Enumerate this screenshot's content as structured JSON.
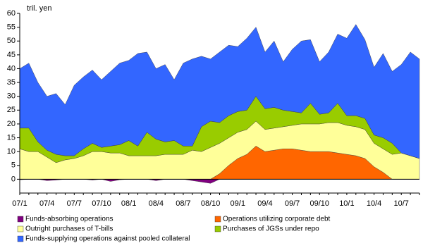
{
  "chart_data": {
    "type": "stacked_area",
    "y_unit_label": "tril. yen",
    "categories": [
      "07/1",
      null,
      null,
      "07/4",
      null,
      null,
      "07/7",
      null,
      null,
      "07/10",
      null,
      null,
      "08/1",
      null,
      null,
      "08/4",
      null,
      null,
      "08/7",
      null,
      null,
      "08/10",
      null,
      null,
      "09/1",
      null,
      null,
      "09/4",
      null,
      null,
      "09/7",
      null,
      null,
      "09/10",
      null,
      null,
      "10/1",
      null,
      null,
      "10/4",
      null,
      null,
      "10/7",
      null,
      null
    ],
    "series": [
      {
        "name": "Funds-absorbing operations",
        "color": "#800080",
        "values": [
          -0.2,
          0,
          0,
          -0.5,
          -0.3,
          0,
          0,
          0,
          -0.3,
          0,
          -0.8,
          -0.2,
          0,
          0,
          0,
          -0.5,
          0,
          0,
          0,
          -0.5,
          -1,
          -1.5,
          0,
          0,
          0,
          0,
          0,
          0,
          0,
          0,
          0,
          0,
          0,
          0,
          0,
          0,
          0,
          0,
          0,
          0,
          0,
          0,
          0,
          0,
          0
        ]
      },
      {
        "name": "Operations utilizing corporate debt",
        "color": "#ff6600",
        "values": [
          0,
          0,
          0,
          0,
          0,
          0,
          0,
          0,
          0,
          0,
          0,
          0,
          0,
          0,
          0,
          0,
          0,
          0,
          0,
          0,
          0,
          0,
          2,
          5,
          7.5,
          9,
          12,
          10,
          10.5,
          11,
          11,
          10.5,
          10,
          10,
          10,
          9.5,
          9,
          8.5,
          7.5,
          4.5,
          2.5,
          0,
          0,
          0,
          0
        ]
      },
      {
        "name": "Outright purchases of T-bills",
        "color": "#ffff99",
        "values": [
          11,
          10,
          10,
          8,
          6,
          7,
          7.5,
          8.5,
          10,
          10,
          9.5,
          9.5,
          8.5,
          8.5,
          8.5,
          8.5,
          9,
          9,
          9,
          10.5,
          10,
          11.5,
          11,
          10,
          9.5,
          9,
          9,
          8,
          8,
          8,
          8.5,
          9.5,
          10,
          10,
          10.5,
          11,
          10.5,
          10.5,
          10.5,
          8.5,
          8.5,
          9,
          9.5,
          8.5,
          7.5
        ]
      },
      {
        "name": "Purchases of JGSs under repo",
        "color": "#99cc00",
        "values": [
          7.5,
          8.5,
          3.5,
          2.5,
          3,
          1.5,
          1,
          2.5,
          3,
          1.5,
          2.5,
          3,
          5.5,
          3.5,
          8.5,
          6,
          4.5,
          5,
          3,
          1.5,
          9,
          9.5,
          7.5,
          8,
          7.5,
          7,
          9,
          7.5,
          7.5,
          6,
          5,
          4,
          7.5,
          3.5,
          3.5,
          7,
          3.5,
          4,
          4,
          3,
          4,
          4,
          0,
          0,
          0
        ]
      },
      {
        "name": "Funds-supplying operations against pooled collateral",
        "color": "#3366ff",
        "values": [
          21.5,
          23.5,
          21.5,
          19.5,
          22,
          18.5,
          25.5,
          26,
          26.5,
          24.5,
          27,
          29.5,
          29,
          33.5,
          29,
          25.5,
          28,
          22,
          30,
          31.5,
          25.5,
          22.5,
          25.5,
          25.5,
          23.5,
          26,
          25,
          20.5,
          24,
          17.5,
          22.5,
          26,
          23,
          19,
          22,
          25,
          28,
          33,
          28.5,
          24.5,
          30.5,
          26,
          32,
          37.5,
          36
        ]
      }
    ],
    "ylim": [
      -5,
      60
    ],
    "yticks": [
      0,
      5,
      10,
      15,
      20,
      25,
      30,
      35,
      40,
      45,
      50,
      55,
      60
    ],
    "grid": false
  }
}
